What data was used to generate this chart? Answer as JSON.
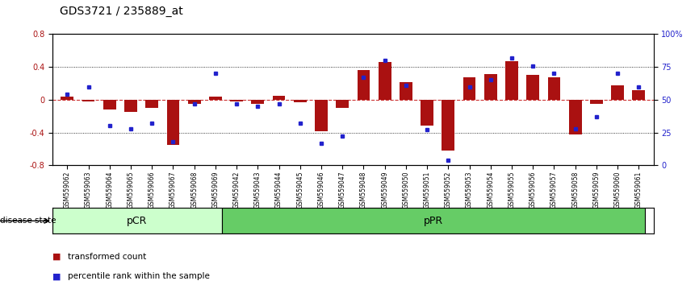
{
  "title": "GDS3721 / 235889_at",
  "samples": [
    "GSM559062",
    "GSM559063",
    "GSM559064",
    "GSM559065",
    "GSM559066",
    "GSM559067",
    "GSM559068",
    "GSM559069",
    "GSM559042",
    "GSM559043",
    "GSM559044",
    "GSM559045",
    "GSM559046",
    "GSM559047",
    "GSM559048",
    "GSM559049",
    "GSM559050",
    "GSM559051",
    "GSM559052",
    "GSM559053",
    "GSM559054",
    "GSM559055",
    "GSM559056",
    "GSM559057",
    "GSM559058",
    "GSM559059",
    "GSM559060",
    "GSM559061"
  ],
  "transformed_count": [
    0.04,
    -0.02,
    -0.12,
    -0.15,
    -0.1,
    -0.55,
    -0.05,
    0.04,
    -0.02,
    -0.05,
    0.05,
    -0.03,
    -0.38,
    -0.1,
    0.36,
    0.46,
    0.22,
    -0.32,
    -0.62,
    0.27,
    0.31,
    0.47,
    0.3,
    0.27,
    -0.42,
    -0.05,
    0.18,
    0.12
  ],
  "percentile_rank": [
    54,
    60,
    30,
    28,
    32,
    18,
    47,
    70,
    47,
    45,
    47,
    32,
    17,
    22,
    67,
    80,
    61,
    27,
    4,
    60,
    65,
    82,
    76,
    70,
    28,
    37,
    70,
    60
  ],
  "pCR_count": 8,
  "pPR_count": 20,
  "bar_color": "#AA1111",
  "dot_color": "#2222CC",
  "bg_color": "#FFFFFF",
  "zero_line_color": "#CC3333",
  "ylim": [
    -0.8,
    0.8
  ],
  "yticks": [
    -0.8,
    -0.4,
    0.0,
    0.4,
    0.8
  ],
  "right_yticks": [
    0,
    25,
    50,
    75,
    100
  ],
  "right_ylabels": [
    "0",
    "25",
    "50",
    "75",
    "100%"
  ],
  "pCR_color": "#CCFFCC",
  "pPR_color": "#66CC66",
  "pCR_label": "pCR",
  "pPR_label": "pPR",
  "tick_fontsize": 7,
  "title_fontsize": 10
}
